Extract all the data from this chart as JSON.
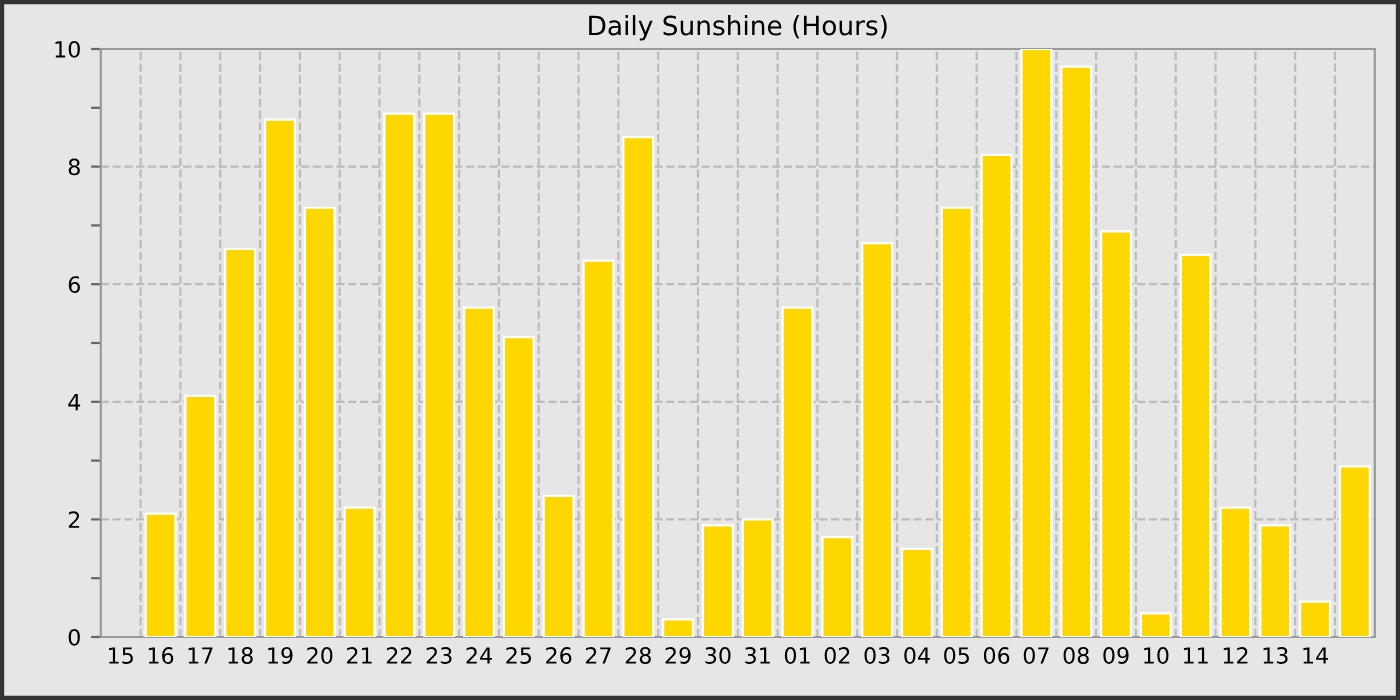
{
  "chart_data": {
    "type": "bar",
    "title": "Daily Sunshine (Hours)",
    "categories": [
      "15",
      "16",
      "17",
      "18",
      "19",
      "20",
      "21",
      "22",
      "23",
      "24",
      "25",
      "26",
      "27",
      "28",
      "29",
      "30",
      "31",
      "01",
      "02",
      "03",
      "04",
      "05",
      "06",
      "07",
      "08",
      "09",
      "10",
      "11",
      "12",
      "13",
      "14",
      null
    ],
    "values": [
      null,
      2.1,
      4.1,
      6.6,
      8.8,
      7.3,
      2.2,
      8.9,
      8.9,
      5.6,
      5.1,
      2.4,
      6.4,
      8.5,
      0.3,
      1.9,
      2.0,
      5.6,
      1.7,
      6.7,
      1.5,
      7.3,
      8.2,
      10,
      9.7,
      6.9,
      0.4,
      6.5,
      2.2,
      1.9,
      0.6,
      2.9
    ],
    "color": "#ffd700",
    "ylim": [
      0,
      10
    ],
    "yticks": [
      0,
      {
        "value": 1,
        "label": null
      },
      2,
      {
        "value": 3,
        "label": null
      },
      4,
      {
        "value": 5,
        "label": null
      },
      6,
      {
        "value": 7,
        "label": null
      },
      8,
      {
        "value": 9,
        "label": null
      },
      10
    ],
    "grid": true
  }
}
